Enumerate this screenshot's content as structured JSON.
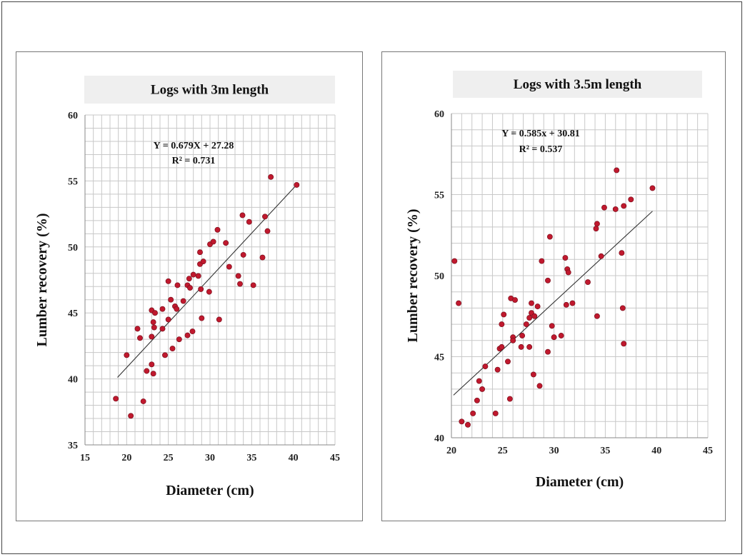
{
  "chart_data": [
    {
      "type": "scatter",
      "title": "Logs with 3m length",
      "xlabel": "Diameter (cm)",
      "ylabel": "Lumber recovery (%)",
      "xlim": [
        15,
        45
      ],
      "ylim": [
        35,
        60
      ],
      "x_ticks": [
        "15",
        "20",
        "25",
        "30",
        "35",
        "40",
        "45"
      ],
      "y_ticks": [
        "35",
        "40",
        "45",
        "50",
        "55",
        "60"
      ],
      "x_minor_step": 1,
      "y_minor_step": 1,
      "grid": true,
      "marker_color": "#c0192e",
      "equation": "Y = 0.679X + 27.28",
      "r_squared": "R² = 0.731",
      "trendline": {
        "slope": 0.679,
        "intercept": 27.28,
        "x_range": [
          18.9,
          40.4
        ]
      },
      "points": [
        [
          18.7,
          38.5
        ],
        [
          20.0,
          41.8
        ],
        [
          20.5,
          37.2
        ],
        [
          21.3,
          43.8
        ],
        [
          21.6,
          43.1
        ],
        [
          22.0,
          38.3
        ],
        [
          22.4,
          40.6
        ],
        [
          23.0,
          41.1
        ],
        [
          23.0,
          45.2
        ],
        [
          23.0,
          43.2
        ],
        [
          23.2,
          40.4
        ],
        [
          23.2,
          44.3
        ],
        [
          23.3,
          43.9
        ],
        [
          23.4,
          45.0
        ],
        [
          24.3,
          45.3
        ],
        [
          24.3,
          43.8
        ],
        [
          24.6,
          41.8
        ],
        [
          25.0,
          44.5
        ],
        [
          25.0,
          47.4
        ],
        [
          25.3,
          46.0
        ],
        [
          25.5,
          42.3
        ],
        [
          25.8,
          45.5
        ],
        [
          26.0,
          45.3
        ],
        [
          26.1,
          47.1
        ],
        [
          26.3,
          43.0
        ],
        [
          26.8,
          45.9
        ],
        [
          27.3,
          43.3
        ],
        [
          27.3,
          47.1
        ],
        [
          27.5,
          47.6
        ],
        [
          27.6,
          46.9
        ],
        [
          27.9,
          43.6
        ],
        [
          28.0,
          47.9
        ],
        [
          28.6,
          47.8
        ],
        [
          28.8,
          48.7
        ],
        [
          28.8,
          49.6
        ],
        [
          28.9,
          46.8
        ],
        [
          29.0,
          44.6
        ],
        [
          29.2,
          48.9
        ],
        [
          29.9,
          46.6
        ],
        [
          30.0,
          50.2
        ],
        [
          30.4,
          50.4
        ],
        [
          30.9,
          51.3
        ],
        [
          31.1,
          44.5
        ],
        [
          31.9,
          50.3
        ],
        [
          32.3,
          48.5
        ],
        [
          33.4,
          47.8
        ],
        [
          33.6,
          47.2
        ],
        [
          33.9,
          52.4
        ],
        [
          34.0,
          49.4
        ],
        [
          34.7,
          51.9
        ],
        [
          35.2,
          47.1
        ],
        [
          36.3,
          49.2
        ],
        [
          36.6,
          52.3
        ],
        [
          36.9,
          51.2
        ],
        [
          37.3,
          55.3
        ],
        [
          40.4,
          54.7
        ]
      ]
    },
    {
      "type": "scatter",
      "title": "Logs with 3.5m length",
      "xlabel": "Diameter (cm)",
      "ylabel": "Lumber recovery (%)",
      "xlim": [
        20,
        45
      ],
      "ylim": [
        40,
        60
      ],
      "x_ticks": [
        "20",
        "25",
        "30",
        "35",
        "40",
        "45"
      ],
      "y_ticks": [
        "40",
        "45",
        "50",
        "55",
        "60"
      ],
      "x_minor_step": 1,
      "y_minor_step": 1,
      "grid": true,
      "marker_color": "#c0192e",
      "equation": "Y = 0.585x + 30.81",
      "r_squared": "R² = 0.537",
      "trendline": {
        "slope": 0.585,
        "intercept": 30.81,
        "x_range": [
          20.2,
          39.6
        ]
      },
      "points": [
        [
          20.3,
          50.9
        ],
        [
          20.7,
          48.3
        ],
        [
          21.0,
          41.0
        ],
        [
          21.6,
          40.8
        ],
        [
          22.1,
          41.5
        ],
        [
          22.5,
          42.3
        ],
        [
          22.7,
          43.5
        ],
        [
          23.0,
          43.0
        ],
        [
          23.3,
          44.4
        ],
        [
          24.3,
          41.5
        ],
        [
          24.5,
          44.2
        ],
        [
          24.7,
          45.5
        ],
        [
          24.9,
          45.6
        ],
        [
          24.9,
          47.0
        ],
        [
          25.1,
          47.6
        ],
        [
          25.5,
          44.7
        ],
        [
          25.7,
          42.4
        ],
        [
          25.8,
          48.6
        ],
        [
          26.0,
          46.2
        ],
        [
          26.0,
          46.0
        ],
        [
          26.2,
          48.5
        ],
        [
          26.8,
          45.6
        ],
        [
          26.9,
          46.3
        ],
        [
          27.3,
          47.0
        ],
        [
          27.6,
          47.4
        ],
        [
          27.6,
          45.6
        ],
        [
          27.8,
          48.3
        ],
        [
          27.8,
          47.7
        ],
        [
          28.0,
          43.9
        ],
        [
          28.1,
          47.5
        ],
        [
          28.4,
          48.1
        ],
        [
          28.6,
          43.2
        ],
        [
          28.8,
          50.9
        ],
        [
          29.4,
          49.7
        ],
        [
          29.4,
          45.3
        ],
        [
          29.6,
          52.4
        ],
        [
          29.8,
          46.9
        ],
        [
          30.0,
          46.2
        ],
        [
          30.7,
          46.3
        ],
        [
          31.1,
          51.1
        ],
        [
          31.2,
          48.2
        ],
        [
          31.3,
          50.4
        ],
        [
          31.4,
          50.2
        ],
        [
          31.8,
          48.3
        ],
        [
          33.3,
          49.6
        ],
        [
          34.1,
          52.9
        ],
        [
          34.2,
          53.2
        ],
        [
          34.2,
          47.5
        ],
        [
          34.6,
          51.2
        ],
        [
          34.9,
          54.2
        ],
        [
          36.0,
          54.1
        ],
        [
          36.1,
          56.5
        ],
        [
          36.6,
          51.4
        ],
        [
          36.8,
          54.3
        ],
        [
          36.7,
          48.0
        ],
        [
          36.8,
          45.8
        ],
        [
          37.5,
          54.7
        ],
        [
          39.6,
          55.4
        ]
      ]
    }
  ]
}
